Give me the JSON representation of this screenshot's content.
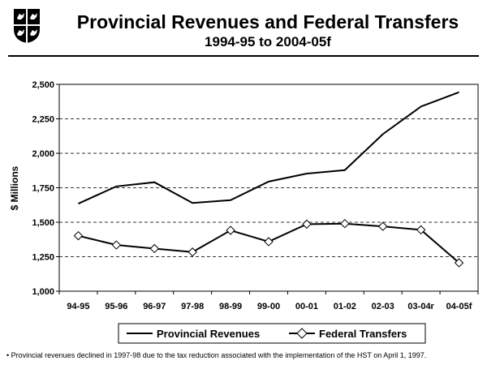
{
  "header": {
    "title": "Provincial Revenues and Federal Transfers",
    "subtitle": "1994-95 to 2004-05f"
  },
  "chart_data": {
    "type": "line",
    "title": "Provincial Revenues and Federal Transfers",
    "subtitle": "1994-95 to 2004-05f",
    "xlabel": "",
    "ylabel": "$ Millions",
    "ylim": [
      1000,
      2500
    ],
    "yticks": [
      1000,
      1250,
      1500,
      1750,
      2000,
      2250,
      2500
    ],
    "ytick_labels": [
      "1,000",
      "1,250",
      "1,500",
      "1,750",
      "2,000",
      "2,250",
      "2,500"
    ],
    "grid": "horizontal dashed",
    "legend": "bottom",
    "categories": [
      "94-95",
      "95-96",
      "96-97",
      "97-98",
      "98-99",
      "99-00",
      "00-01",
      "01-02",
      "02-03",
      "03-04r",
      "04-05f"
    ],
    "series": [
      {
        "name": "Provincial Revenues",
        "marker": "none",
        "color": "#000000",
        "values": [
          1635,
          1760,
          1790,
          1640,
          1660,
          1795,
          1853,
          1878,
          2139,
          2339,
          2443
        ]
      },
      {
        "name": "Federal Transfers",
        "marker": "diamond",
        "color": "#000000",
        "values": [
          1402,
          1335,
          1309,
          1284,
          1441,
          1359,
          1486,
          1490,
          1470,
          1445,
          1206
        ]
      }
    ]
  },
  "footnote": "• Provincial revenues declined in 1997-98 due to the tax reduction associated with the implementation of the HST on April 1, 1997."
}
